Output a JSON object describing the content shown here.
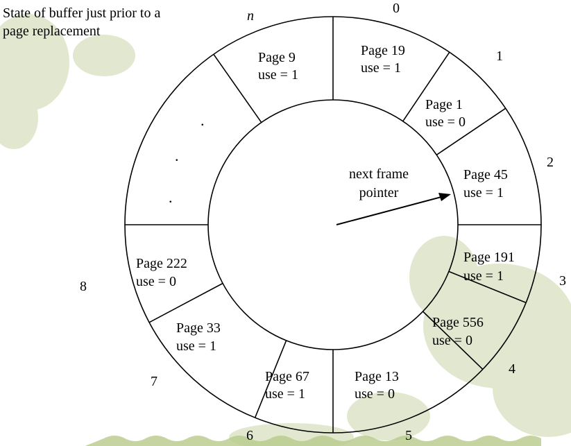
{
  "caption": {
    "line1": "State of buffer just prior to a",
    "line2": "page replacement"
  },
  "pointer": {
    "line1": "next frame",
    "line2": "pointer"
  },
  "frames": [
    {
      "page": "Page 9",
      "use": "use = 1"
    },
    {
      "page": "Page 19",
      "use": "use = 1"
    },
    {
      "page": "Page 1",
      "use": "use = 0"
    },
    {
      "page": "Page 45",
      "use": "use = 1"
    },
    {
      "page": "Page 191",
      "use": "use = 1"
    },
    {
      "page": "Page 556",
      "use": "use = 0"
    },
    {
      "page": "Page 13",
      "use": "use = 0"
    },
    {
      "page": "Page 67",
      "use": "use = 1"
    },
    {
      "page": "Page 33",
      "use": "use = 1"
    },
    {
      "page": "Page 222",
      "use": "use = 0"
    }
  ],
  "indices": [
    "n",
    "0",
    "1",
    "2",
    "3",
    "4",
    "5",
    "6",
    "7",
    "8"
  ],
  "ellipsis": [
    ".",
    ".",
    "."
  ],
  "colors": {
    "foliage": "#c9d6a8",
    "ground": "#b7c98a",
    "line": "#000000"
  }
}
